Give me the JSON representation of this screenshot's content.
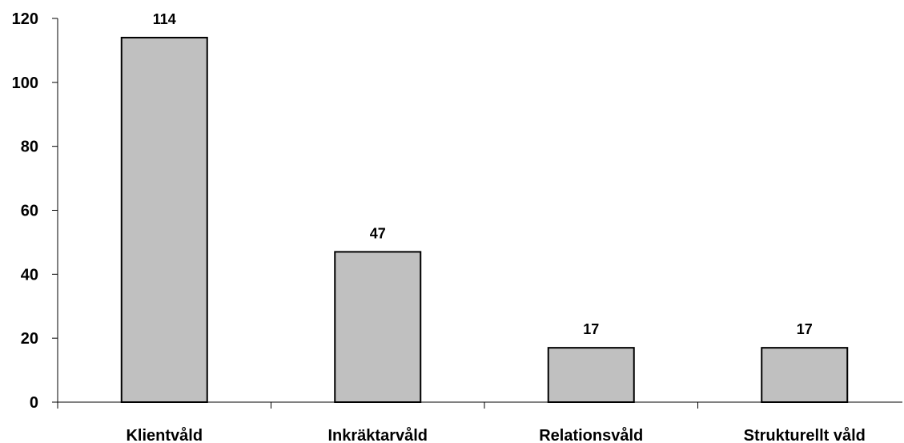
{
  "chart_data": {
    "type": "bar",
    "categories": [
      "Klientvåld",
      "Inkräktarvåld",
      "Relationsvåld",
      "Strukturellt våld"
    ],
    "values": [
      114,
      47,
      17,
      17
    ],
    "data_labels": [
      "114",
      "47",
      "17",
      "17"
    ],
    "title": "",
    "xlabel": "",
    "ylabel": "",
    "ylim": [
      0,
      120
    ],
    "yticks": [
      0,
      20,
      40,
      60,
      80,
      100,
      120
    ],
    "ytick_labels": [
      "0",
      "20",
      "40",
      "60",
      "80",
      "100",
      "120"
    ],
    "grid": false,
    "legend": "none",
    "bar_color": "#c0c0c0",
    "bar_edge_color": "#000000"
  }
}
